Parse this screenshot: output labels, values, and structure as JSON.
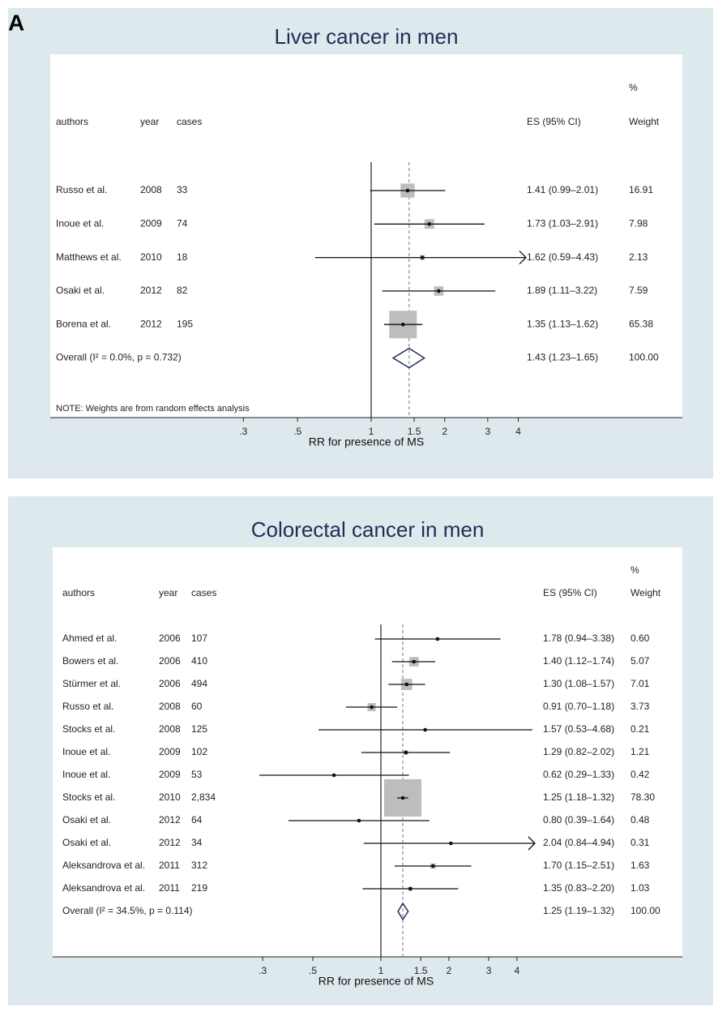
{
  "panel_label": "A",
  "chart_data": [
    {
      "type": "forest",
      "title": "Liver cancer in men",
      "columns": [
        "authors",
        "year",
        "cases"
      ],
      "es_header": "ES (95% CI)",
      "weight_header": [
        "%",
        "Weight"
      ],
      "authors": [
        "Russo et al.",
        "Inoue et al.",
        "Matthews et al.",
        "Osaki et al.",
        "Borena et al."
      ],
      "years": [
        "2008",
        "2009",
        "2010",
        "2012",
        "2012"
      ],
      "cases": [
        "33",
        "74",
        "18",
        "82",
        "195"
      ],
      "values": [
        1.41,
        1.73,
        1.62,
        1.89,
        1.35
      ],
      "lower": [
        0.99,
        1.03,
        0.59,
        1.11,
        1.13
      ],
      "upper": [
        2.01,
        2.91,
        4.43,
        3.22,
        1.62
      ],
      "value_labels": [
        "1.41 (0.99–2.01)",
        "1.73 (1.03–2.91)",
        "1.62 (0.59–4.43)",
        "1.89 (1.11–3.22)",
        "1.35 (1.13–1.62)"
      ],
      "weights": [
        16.91,
        7.98,
        2.13,
        7.59,
        65.38
      ],
      "weight_labels": [
        "16.91",
        "7.98",
        "2.13",
        "7.59",
        "65.38"
      ],
      "overall": {
        "label": "Overall (I² = 0.0%, p = 0.732)",
        "value": 1.43,
        "lower": 1.23,
        "upper": 1.65,
        "value_label": "1.43 (1.23–1.65)",
        "weight": 100,
        "weight_label": "100.00"
      },
      "note": "NOTE: Weights are from random effects analysis",
      "xlabel": "RR for presence of MS",
      "xscale": "log",
      "ref_line": 1,
      "xlim": [
        0.23,
        4.3
      ],
      "xticks": [
        {
          "value": 0.3,
          "label": ".3"
        },
        {
          "value": 0.5,
          "label": ".5"
        },
        1,
        1.5,
        2,
        3,
        4
      ]
    },
    {
      "type": "forest",
      "title": "Colorectal cancer in men",
      "columns": [
        "authors",
        "year",
        "cases"
      ],
      "es_header": "ES (95% CI)",
      "weight_header": [
        "%",
        "Weight"
      ],
      "authors": [
        "Ahmed et al.",
        "Bowers et al.",
        "Stürmer et al.",
        "Russo et al.",
        "Stocks et al.",
        "Inoue et al.",
        "Inoue et al.",
        "Stocks et al.",
        "Osaki et al.",
        "Osaki et al.",
        "Aleksandrova et al.",
        "Aleksandrova et al."
      ],
      "years": [
        "2006",
        "2006",
        "2006",
        "2008",
        "2008",
        "2009",
        "2009",
        "2010",
        "2012",
        "2012",
        "2011",
        "2011"
      ],
      "cases": [
        "107",
        "410",
        "494",
        "60",
        "125",
        "102",
        "53",
        "2,834",
        "64",
        "34",
        "312",
        "219"
      ],
      "values": [
        1.78,
        1.4,
        1.3,
        0.91,
        1.57,
        1.29,
        0.62,
        1.25,
        0.8,
        2.04,
        1.7,
        1.35
      ],
      "lower": [
        0.94,
        1.12,
        1.08,
        0.7,
        0.53,
        0.82,
        0.29,
        1.18,
        0.39,
        0.84,
        1.15,
        0.83
      ],
      "upper": [
        3.38,
        1.74,
        1.57,
        1.18,
        4.68,
        2.02,
        1.33,
        1.32,
        1.64,
        4.94,
        2.51,
        2.2
      ],
      "value_labels": [
        "1.78 (0.94–3.38)",
        "1.40 (1.12–1.74)",
        "1.30 (1.08–1.57)",
        "0.91 (0.70–1.18)",
        "1.57 (0.53–4.68)",
        "1.29 (0.82–2.02)",
        "0.62 (0.29–1.33)",
        "1.25 (1.18–1.32)",
        "0.80 (0.39–1.64)",
        "2.04 (0.84–4.94)",
        "1.70 (1.15–2.51)",
        "1.35 (0.83–2.20)"
      ],
      "weights": [
        0.6,
        5.07,
        7.01,
        3.73,
        0.21,
        1.21,
        0.42,
        78.3,
        0.48,
        0.31,
        1.63,
        1.03
      ],
      "weight_labels": [
        "0.60",
        "5.07",
        "7.01",
        "3.73",
        "0.21",
        "1.21",
        "0.42",
        "78.30",
        "0.48",
        "0.31",
        "1.63",
        "1.03"
      ],
      "overall": {
        "label": "Overall (I² = 34.5%, p = 0.114)",
        "value": 1.25,
        "lower": 1.19,
        "upper": 1.32,
        "value_label": "1.25 (1.19–1.32)",
        "weight": 100,
        "weight_label": "100.00"
      },
      "xlabel": "RR for presence of MS",
      "xscale": "log",
      "ref_line": 1,
      "xlim": [
        0.2,
        4.8
      ],
      "xticks": [
        {
          "value": 0.3,
          "label": ".3"
        },
        {
          "value": 0.5,
          "label": ".5"
        },
        1,
        1.5,
        2,
        3,
        4
      ]
    }
  ]
}
